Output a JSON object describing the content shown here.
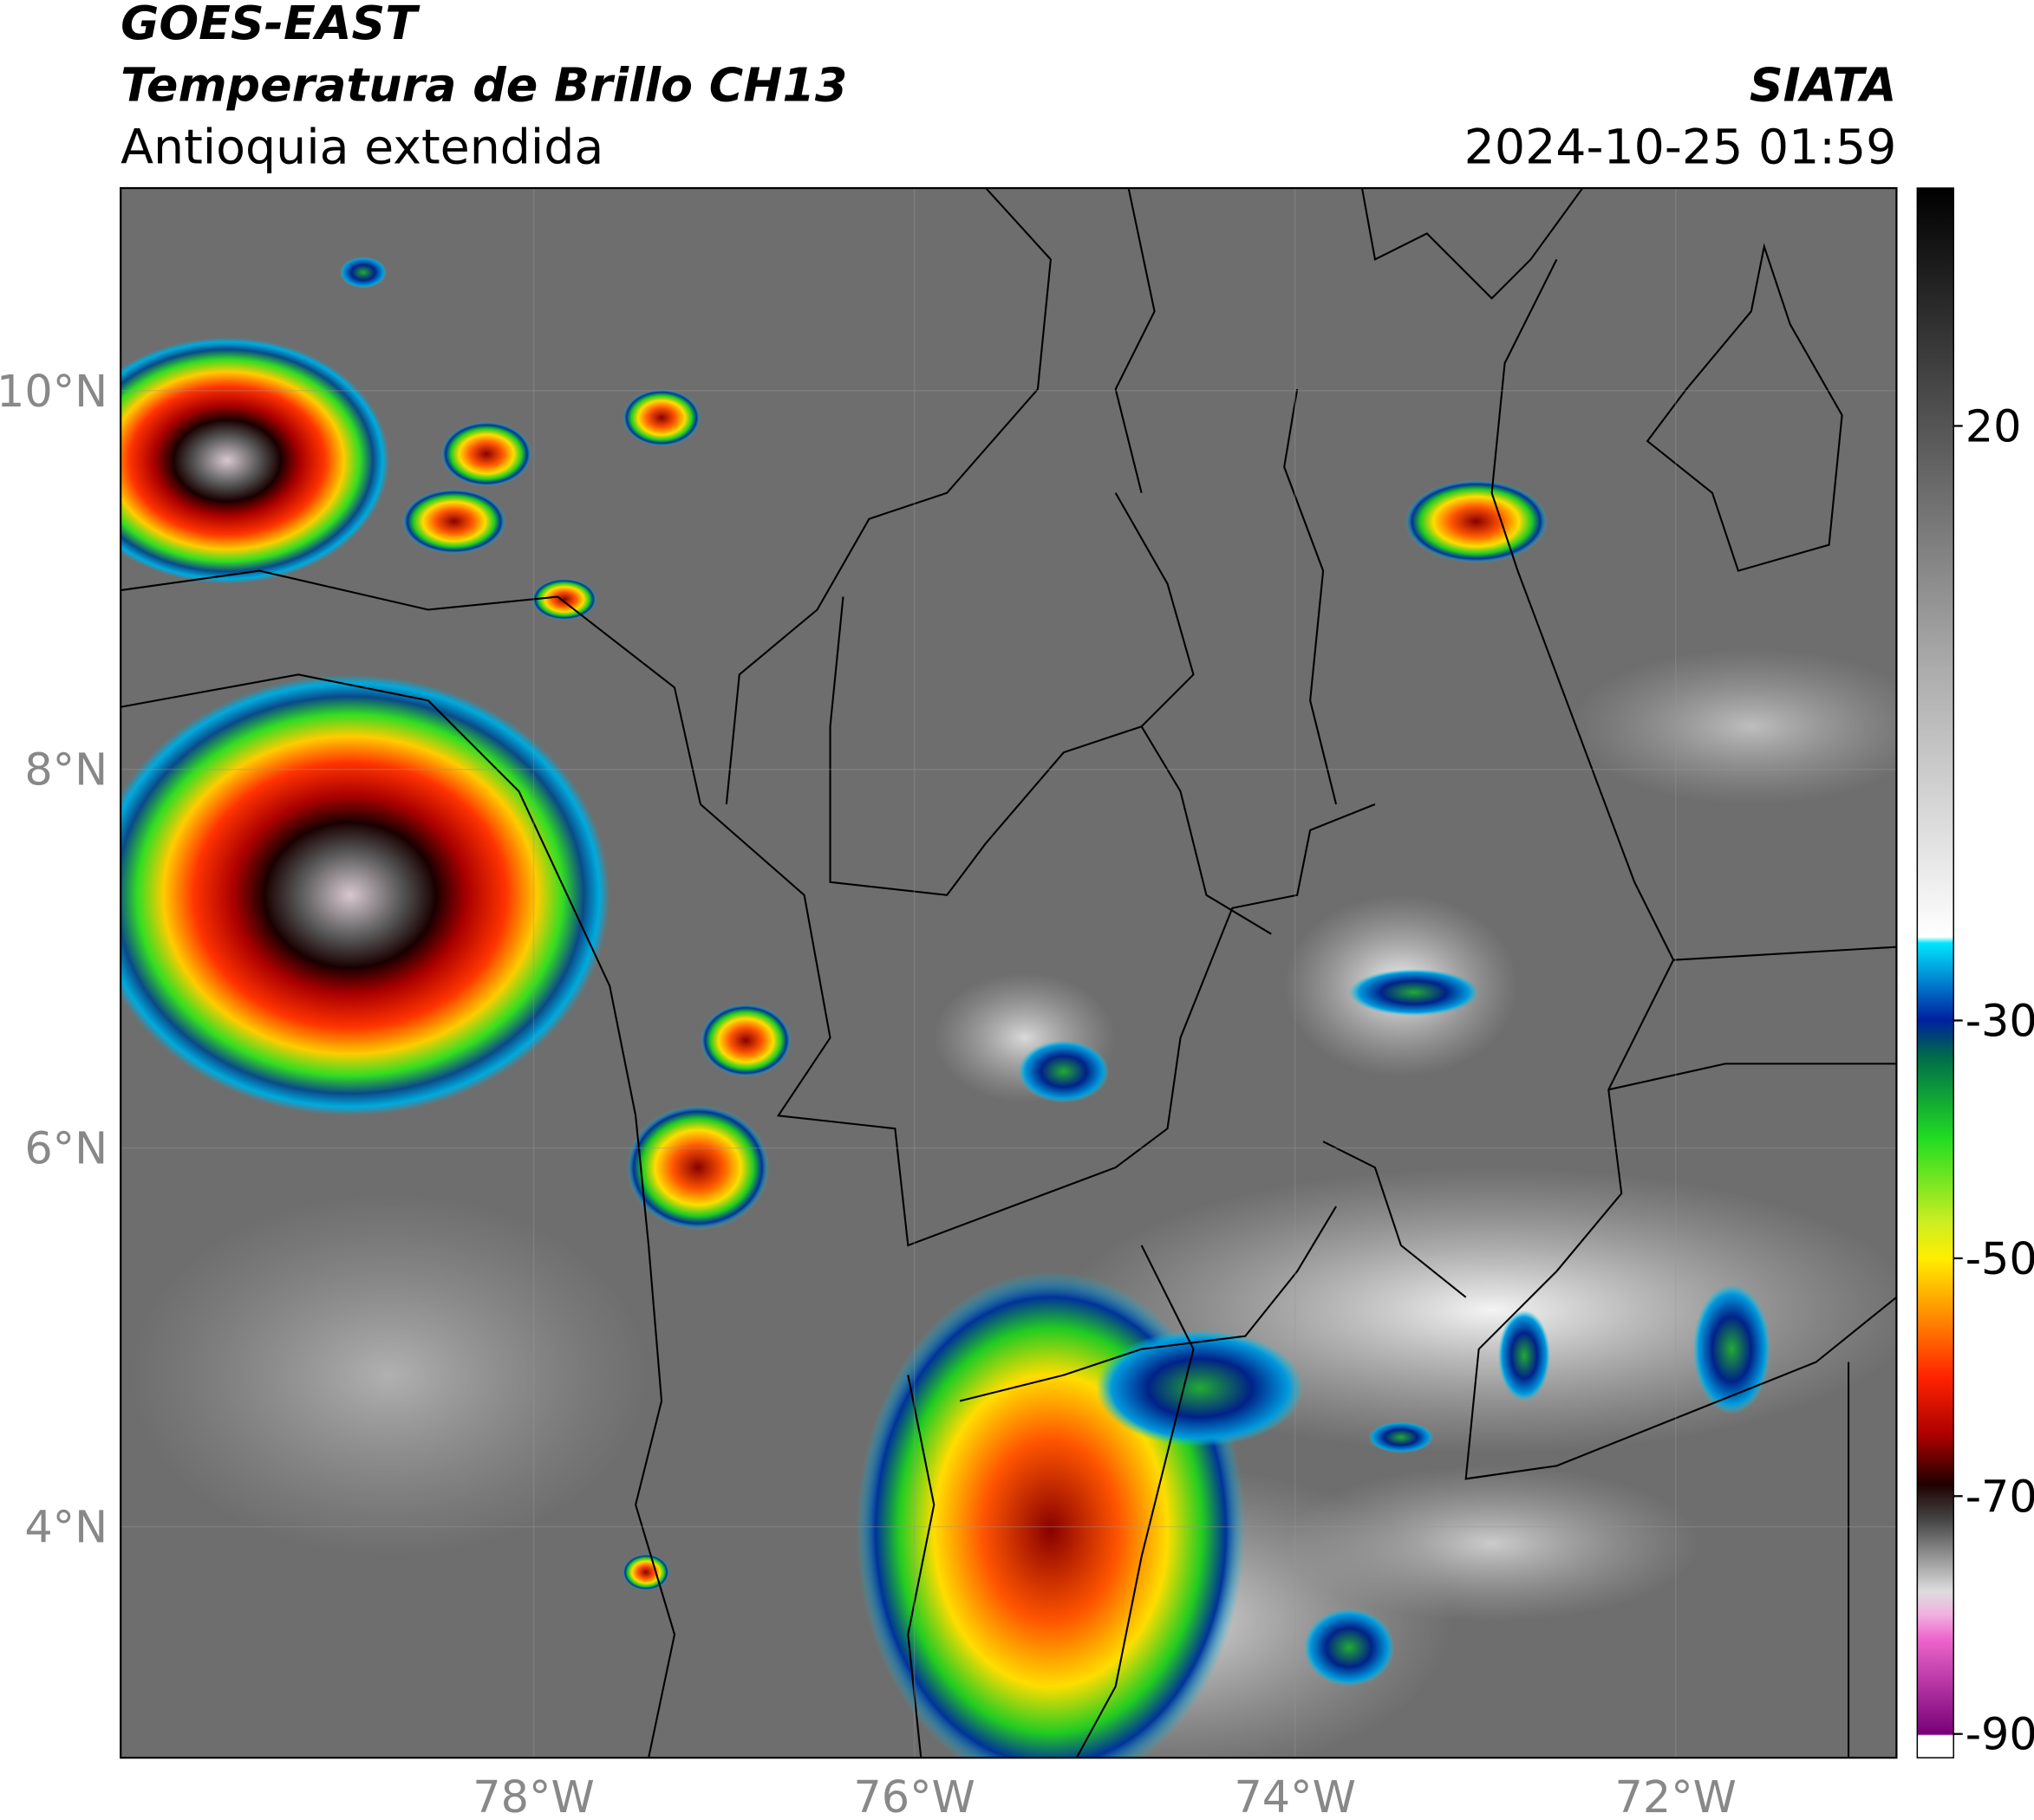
{
  "header": {
    "title": "GOES-EAST",
    "subtitle": "Temperatura de Brillo CH13",
    "region": "Antioquia extendida",
    "source": "SIATA",
    "timestamp": "2024-10-25 01:59"
  },
  "map": {
    "xlim": [
      -80.17,
      -70.84
    ],
    "ylim": [
      2.78,
      11.07
    ],
    "xticks": [
      {
        "value": -78,
        "label": "78°W"
      },
      {
        "value": -76,
        "label": "76°W"
      },
      {
        "value": -74,
        "label": "74°W"
      },
      {
        "value": -72,
        "label": "72°W"
      }
    ],
    "yticks": [
      {
        "value": 10,
        "label": "10°N"
      },
      {
        "value": 8,
        "label": "8°N"
      },
      {
        "value": 6,
        "label": "6°N"
      },
      {
        "value": 4,
        "label": "4°N"
      }
    ]
  },
  "colorbar": {
    "lim": [
      -92,
      40
    ],
    "ticks": [
      20,
      -30,
      -50,
      -70,
      -90
    ]
  }
}
